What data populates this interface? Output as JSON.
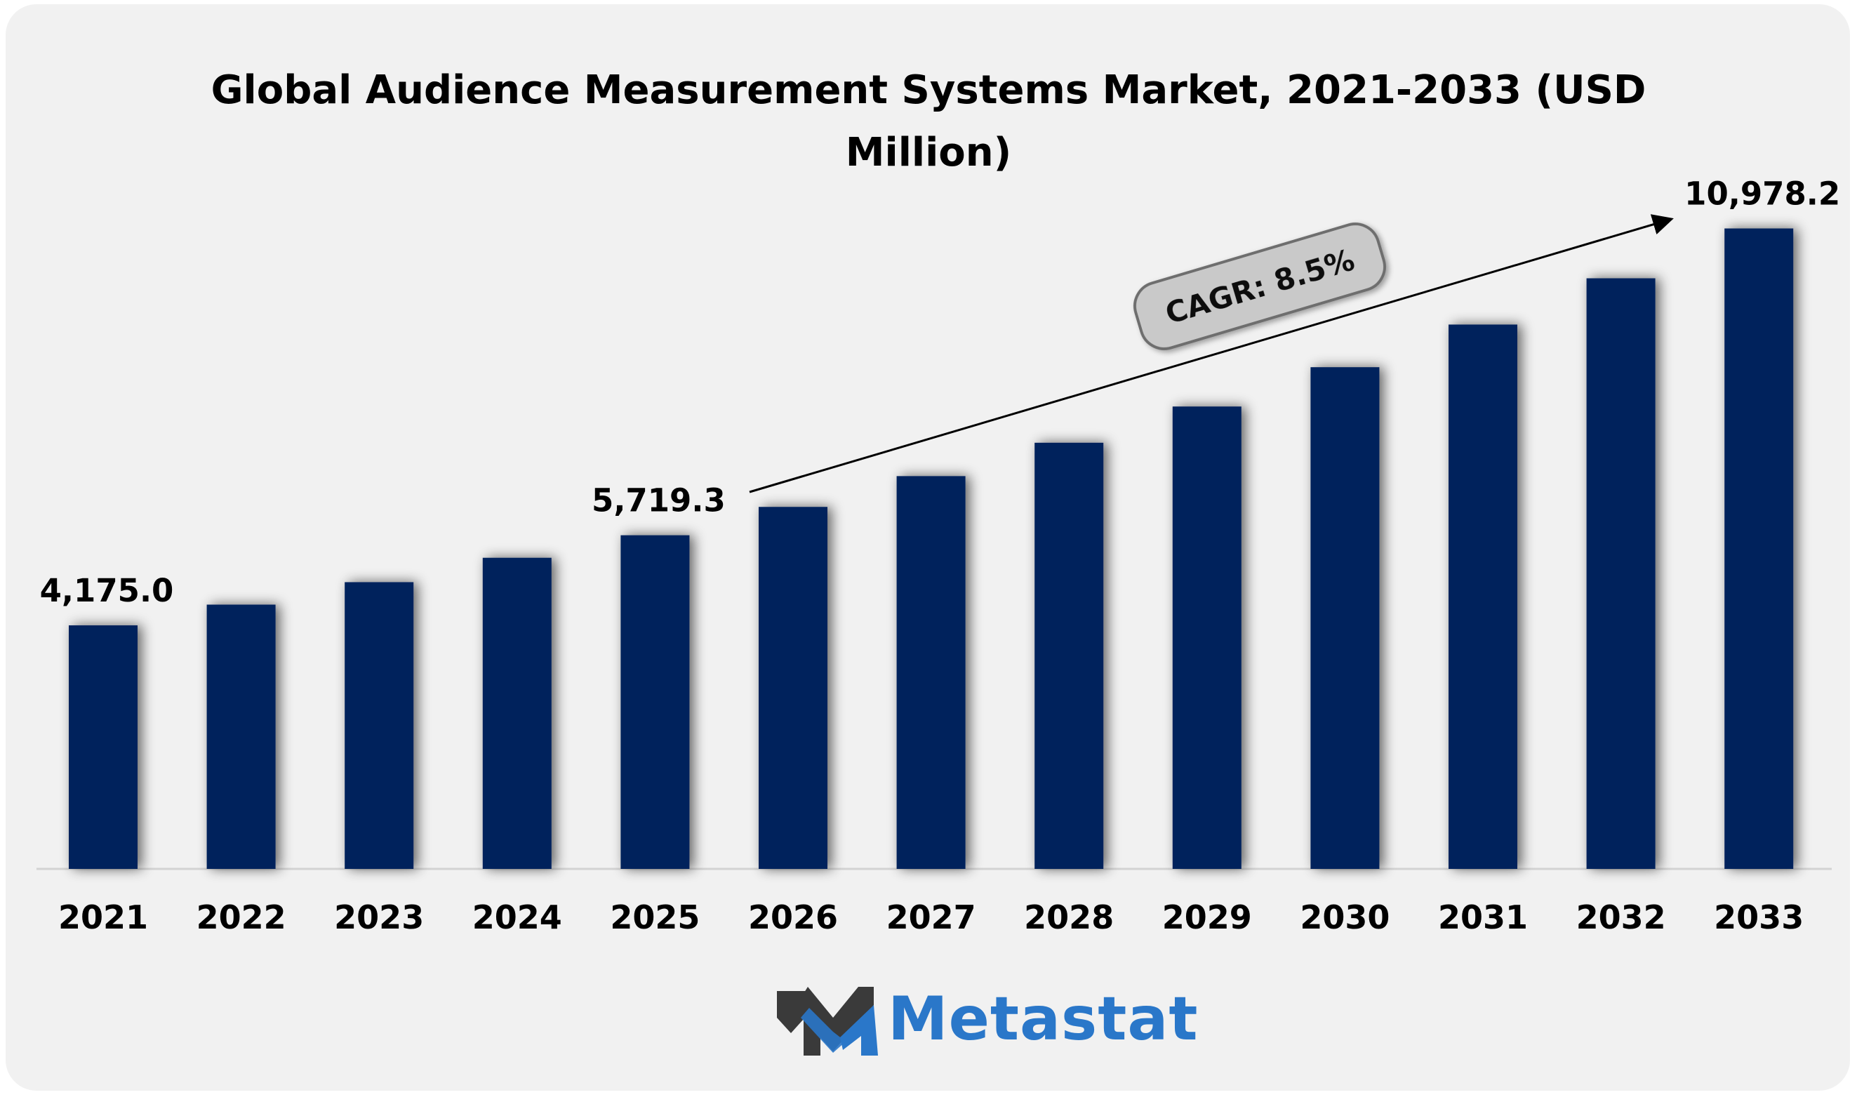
{
  "chart_data": {
    "type": "bar",
    "title_line1": "Global Audience Measurement Systems Market, 2021-2033 (USD",
    "title_line2": "Million)",
    "categories": [
      "2021",
      "2022",
      "2023",
      "2024",
      "2025",
      "2026",
      "2027",
      "2028",
      "2029",
      "2030",
      "2031",
      "2032",
      "2033"
    ],
    "values": [
      4175.0,
      4530.0,
      4915.0,
      5333.0,
      5719.3,
      6205.0,
      6733.0,
      7305.0,
      7926.0,
      8600.0,
      9331.0,
      10124.0,
      10978.2
    ],
    "data_labels": [
      {
        "index": 0,
        "text": "4,175.0"
      },
      {
        "index": 4,
        "text": "5,719.3"
      },
      {
        "index": 12,
        "text": "10,978.2"
      }
    ],
    "annotation": "CAGR: 8.5%",
    "ylim": [
      0,
      11500
    ],
    "bar_color": "#03205c"
  },
  "logo": {
    "text": "Metastat",
    "color": "#2a77c9"
  }
}
